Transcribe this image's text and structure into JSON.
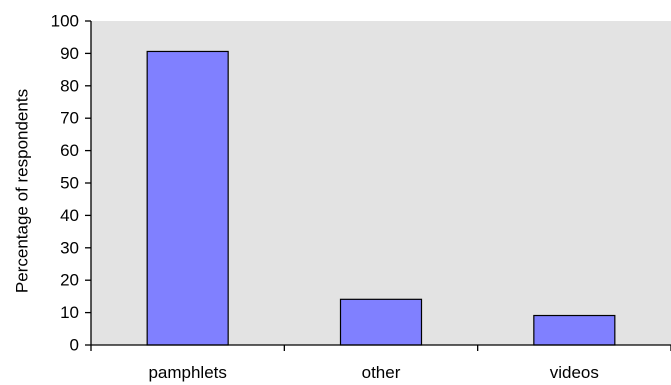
{
  "chart_data": {
    "type": "bar",
    "title": "",
    "xlabel": "",
    "ylabel": "Percentage of respondents",
    "categories": [
      "pamphlets",
      "other",
      "videos"
    ],
    "values": [
      90.6,
      14.1,
      9.1
    ],
    "ylim": [
      0,
      100
    ],
    "yticks": [
      0,
      10,
      20,
      30,
      40,
      50,
      60,
      70,
      80,
      90,
      100
    ],
    "grid": false,
    "legend": "none",
    "colors": {
      "plot_background": "#e3e3e3",
      "bar_fill": "#8080ff",
      "bar_stroke": "#000000",
      "axis": "#000000"
    }
  }
}
